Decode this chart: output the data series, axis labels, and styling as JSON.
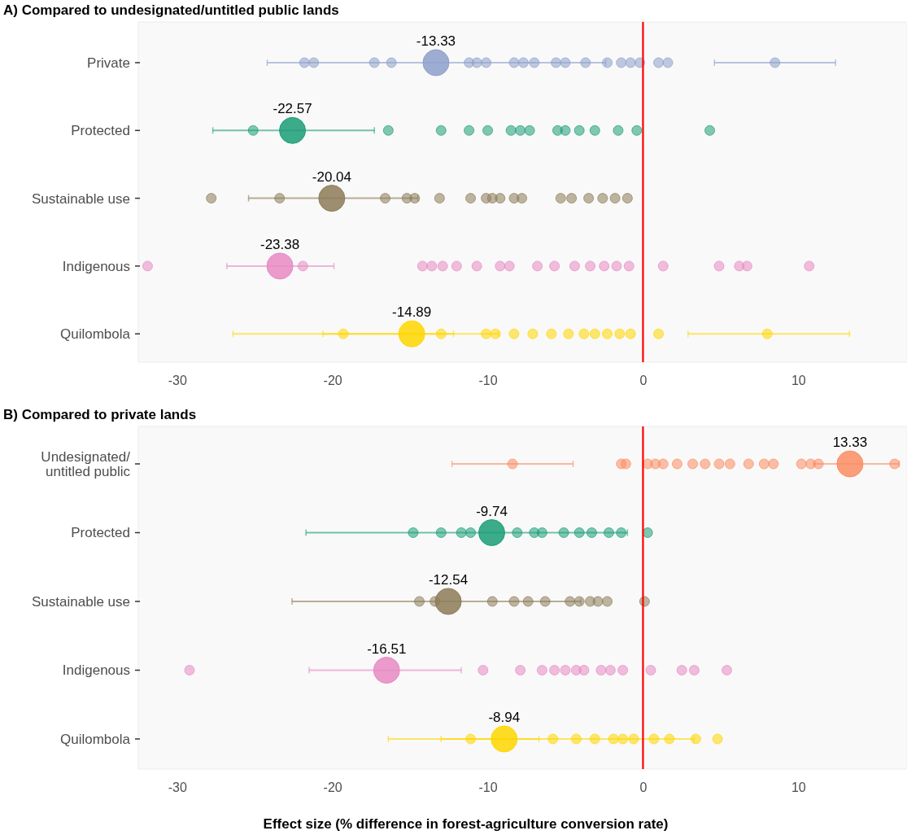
{
  "chart_data": [
    {
      "type": "scatter",
      "orientation": "horizontal",
      "title": "A) Compared to undesignated/untitled public lands",
      "categories": [
        "Private",
        "Protected",
        "Sustainable use",
        "Indigenous",
        "Quilombola"
      ],
      "xlim": [
        -32.5,
        17
      ],
      "xticks": [
        -30,
        -20,
        -10,
        0,
        10
      ],
      "grid": false,
      "marker": "circle",
      "tick_labels": "xy",
      "ref_lines": [
        {
          "axis": "x",
          "value": 0,
          "color": "#ff0000"
        }
      ],
      "series": [
        {
          "color": "#8da0cb",
          "x": [
            "Private",
            "Private",
            "Private",
            "Private",
            "Private",
            "Private",
            "Private",
            "Private",
            "Private",
            "Private",
            "Private",
            "Private",
            "Private",
            "Private",
            "Private",
            "Private",
            "Private",
            "Private",
            "Private",
            "Private"
          ],
          "values": [
            -21.8,
            -21.2,
            -17.3,
            -16.2,
            -11.2,
            -10.7,
            -10.1,
            -8.3,
            -7.7,
            -7.0,
            -5.6,
            -5.0,
            -3.7,
            -2.3,
            -1.4,
            -0.8,
            -0.2,
            1.0,
            1.6,
            8.5
          ],
          "errors": [
            null,
            null,
            null,
            null,
            null,
            null,
            null,
            null,
            null,
            null,
            null,
            null,
            null,
            null,
            null,
            null,
            null,
            null,
            null,
            [
              4.6,
              12.4
            ]
          ]
        },
        {
          "color": "#1b9e77",
          "x": [
            "Protected",
            "Protected",
            "Protected",
            "Protected",
            "Protected",
            "Protected",
            "Protected",
            "Protected",
            "Protected",
            "Protected",
            "Protected",
            "Protected",
            "Protected",
            "Protected",
            "Protected"
          ],
          "values": [
            -25.1,
            -16.4,
            -13.0,
            -11.2,
            -10.0,
            -8.5,
            -7.9,
            -7.3,
            -5.5,
            -5.0,
            -4.1,
            -3.1,
            -1.6,
            -0.4,
            4.3
          ]
        },
        {
          "color": "#8c7b57",
          "x": [
            "Sustainable use",
            "Sustainable use",
            "Sustainable use",
            "Sustainable use",
            "Sustainable use",
            "Sustainable use",
            "Sustainable use",
            "Sustainable use",
            "Sustainable use",
            "Sustainable use",
            "Sustainable use",
            "Sustainable use",
            "Sustainable use",
            "Sustainable use",
            "Sustainable use",
            "Sustainable use",
            "Sustainable use",
            "Sustainable use"
          ],
          "values": [
            -27.8,
            -23.4,
            -16.6,
            -15.2,
            -14.7,
            -13.1,
            -11.1,
            -10.1,
            -9.7,
            -9.2,
            -8.3,
            -7.8,
            -5.3,
            -4.6,
            -3.5,
            -2.6,
            -1.8,
            -1.0
          ]
        },
        {
          "color": "#e78ac3",
          "x": [
            "Indigenous",
            "Indigenous",
            "Indigenous",
            "Indigenous",
            "Indigenous",
            "Indigenous",
            "Indigenous",
            "Indigenous",
            "Indigenous",
            "Indigenous",
            "Indigenous",
            "Indigenous",
            "Indigenous",
            "Indigenous",
            "Indigenous",
            "Indigenous",
            "Indigenous",
            "Indigenous",
            "Indigenous",
            "Indigenous",
            "Indigenous"
          ],
          "values": [
            -31.9,
            -21.9,
            -14.2,
            -13.6,
            -12.9,
            -12.0,
            -10.7,
            -9.2,
            -8.6,
            -6.8,
            -5.7,
            -4.4,
            -3.4,
            -2.5,
            -1.7,
            -0.9,
            1.3,
            4.9,
            6.2,
            6.7,
            10.7
          ]
        },
        {
          "color": "#ffd700",
          "x": [
            "Quilombola",
            "Quilombola",
            "Quilombola",
            "Quilombola",
            "Quilombola",
            "Quilombola",
            "Quilombola",
            "Quilombola",
            "Quilombola",
            "Quilombola",
            "Quilombola",
            "Quilombola",
            "Quilombola",
            "Quilombola",
            "Quilombola"
          ],
          "values": [
            -19.3,
            -13.0,
            -10.1,
            -9.5,
            -8.3,
            -7.1,
            -5.9,
            -4.8,
            -3.8,
            -3.1,
            -2.3,
            -1.5,
            -0.8,
            1.0,
            8.0
          ],
          "errors": [
            [
              -26.4,
              -12.2
            ],
            null,
            null,
            null,
            null,
            null,
            null,
            null,
            null,
            null,
            null,
            null,
            null,
            null,
            [
              2.9,
              13.3
            ]
          ]
        },
        {
          "type": "bubble",
          "colors": [
            "#8da0cb",
            "#1b9e77",
            "#8c7b57",
            "#e78ac3",
            "#ffd700"
          ],
          "values": [
            -13.33,
            -22.57,
            -20.04,
            -23.38,
            -14.89
          ],
          "sizes": [
            1,
            1,
            1,
            1,
            1
          ],
          "errors": [
            [
              -24.2,
              -2.4
            ],
            [
              -27.7,
              -17.3
            ],
            [
              -25.4,
              -14.5
            ],
            [
              -26.8,
              -19.9
            ],
            [
              -20.6,
              -9.3
            ]
          ],
          "value_labels": [
            "-13.33",
            "-22.57",
            "-20.04",
            "-23.38",
            "-14.89"
          ]
        }
      ]
    },
    {
      "type": "scatter",
      "orientation": "horizontal",
      "title": "B) Compared to private lands",
      "xlabel": "Effect size (% difference in forest-agriculture conversion rate)",
      "categories": [
        "Undesignated/ untitled public",
        "Protected",
        "Sustainable use",
        "Indigenous",
        "Quilombola"
      ],
      "xlim": [
        -32.5,
        17
      ],
      "xticks": [
        -30,
        -20,
        -10,
        0,
        10
      ],
      "grid": false,
      "marker": "circle",
      "tick_labels": "xy",
      "ref_lines": [
        {
          "axis": "x",
          "value": 0,
          "color": "#ff0000"
        }
      ],
      "series": [
        {
          "color": "#fc8d62",
          "x": [
            "Undesignated/ untitled public",
            "Undesignated/ untitled public",
            "Undesignated/ untitled public",
            "Undesignated/ untitled public",
            "Undesignated/ untitled public",
            "Undesignated/ untitled public",
            "Undesignated/ untitled public",
            "Undesignated/ untitled public",
            "Undesignated/ untitled public",
            "Undesignated/ untitled public",
            "Undesignated/ untitled public",
            "Undesignated/ untitled public",
            "Undesignated/ untitled public",
            "Undesignated/ untitled public",
            "Undesignated/ untitled public",
            "Undesignated/ untitled public",
            "Undesignated/ untitled public",
            "Undesignated/ untitled public"
          ],
          "values": [
            -8.4,
            -1.4,
            -1.1,
            0.3,
            0.8,
            1.3,
            2.2,
            3.2,
            4.0,
            4.9,
            5.6,
            6.8,
            7.8,
            8.4,
            10.2,
            10.8,
            11.3,
            16.2
          ],
          "errors": [
            [
              -12.3,
              -4.5
            ],
            null,
            null,
            null,
            null,
            null,
            null,
            null,
            null,
            null,
            null,
            null,
            null,
            null,
            null,
            null,
            null,
            null
          ]
        },
        {
          "color": "#1b9e77",
          "x": [
            "Protected",
            "Protected",
            "Protected",
            "Protected",
            "Protected",
            "Protected",
            "Protected",
            "Protected",
            "Protected",
            "Protected",
            "Protected",
            "Protected",
            "Protected"
          ],
          "values": [
            -14.8,
            -13.0,
            -11.7,
            -11.1,
            -8.1,
            -7.0,
            -6.5,
            -5.1,
            -4.1,
            -3.3,
            -2.2,
            -1.4,
            0.3
          ]
        },
        {
          "color": "#8c7b57",
          "x": [
            "Sustainable use",
            "Sustainable use",
            "Sustainable use",
            "Sustainable use",
            "Sustainable use",
            "Sustainable use",
            "Sustainable use",
            "Sustainable use",
            "Sustainable use",
            "Sustainable use",
            "Sustainable use",
            "Sustainable use"
          ],
          "values": [
            -14.4,
            -13.4,
            -9.7,
            -8.3,
            -7.4,
            -6.3,
            -4.7,
            -4.1,
            -3.4,
            -2.9,
            -2.3,
            0.1
          ]
        },
        {
          "color": "#e78ac3",
          "x": [
            "Indigenous",
            "Indigenous",
            "Indigenous",
            "Indigenous",
            "Indigenous",
            "Indigenous",
            "Indigenous",
            "Indigenous",
            "Indigenous",
            "Indigenous",
            "Indigenous",
            "Indigenous",
            "Indigenous",
            "Indigenous",
            "Indigenous"
          ],
          "values": [
            -29.2,
            -10.3,
            -7.9,
            -6.5,
            -5.7,
            -5.0,
            -4.3,
            -3.8,
            -2.7,
            -2.1,
            -1.3,
            0.5,
            2.5,
            3.3,
            5.4
          ]
        },
        {
          "color": "#ffd700",
          "x": [
            "Quilombola",
            "Quilombola",
            "Quilombola",
            "Quilombola",
            "Quilombola",
            "Quilombola",
            "Quilombola",
            "Quilombola",
            "Quilombola",
            "Quilombola",
            "Quilombola"
          ],
          "values": [
            -11.1,
            -5.8,
            -4.3,
            -3.1,
            -1.9,
            -1.3,
            -0.6,
            0.7,
            1.7,
            3.4,
            4.8
          ],
          "errors": [
            [
              -16.4,
              3.3
            ],
            null,
            null,
            null,
            null,
            null,
            null,
            null,
            null,
            null,
            null
          ]
        },
        {
          "type": "bubble",
          "colors": [
            "#fc8d62",
            "#1b9e77",
            "#8c7b57",
            "#e78ac3",
            "#ffd700"
          ],
          "values": [
            13.33,
            -9.74,
            -12.54,
            -16.51,
            -8.94
          ],
          "sizes": [
            1,
            1,
            1,
            1,
            1
          ],
          "errors": [
            [
              11.0,
              16.5
            ],
            [
              -21.7,
              -1.0
            ],
            [
              -22.6,
              -4.0
            ],
            [
              -21.5,
              -11.7
            ],
            [
              -13.0,
              -6.7
            ]
          ],
          "value_labels": [
            "13.33",
            "-9.74",
            "-12.54",
            "-16.51",
            "-8.94"
          ]
        }
      ]
    }
  ]
}
